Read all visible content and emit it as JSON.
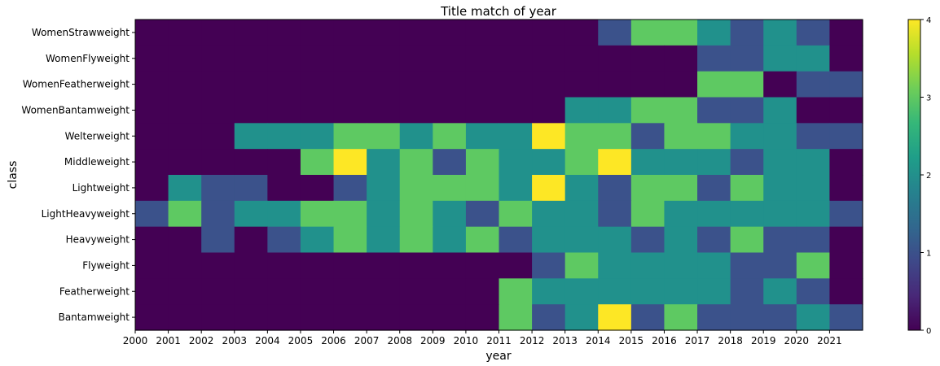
{
  "chart_data": {
    "type": "heatmap",
    "title": "Title match of year",
    "xlabel": "year",
    "ylabel": "class",
    "x_tick_labels": [
      "2000",
      "2001",
      "2002",
      "2003",
      "2004",
      "2005",
      "2006",
      "2007",
      "2008",
      "2009",
      "2010",
      "2011",
      "2012",
      "2013",
      "2014",
      "2015",
      "2016",
      "2017",
      "2018",
      "2019",
      "2020",
      "2021"
    ],
    "x": [
      2000,
      2001,
      2002,
      2003,
      2004,
      2005,
      2006,
      2007,
      2008,
      2009,
      2010,
      2011,
      2012,
      2013,
      2014,
      2015,
      2016,
      2017,
      2018,
      2019,
      2020,
      2021
    ],
    "y": [
      "WomenStrawweight",
      "WomenFlyweight",
      "WomenFeatherweight",
      "WomenBantamweight",
      "Welterweight",
      "Middleweight",
      "Lightweight",
      "LightHeavyweight",
      "Heavyweight",
      "Flyweight",
      "Featherweight",
      "Bantamweight"
    ],
    "values": [
      [
        0,
        0,
        0,
        0,
        0,
        0,
        0,
        0,
        0,
        0,
        0,
        0,
        0,
        0,
        1,
        3,
        3,
        2,
        1,
        2,
        1,
        0
      ],
      [
        0,
        0,
        0,
        0,
        0,
        0,
        0,
        0,
        0,
        0,
        0,
        0,
        0,
        0,
        0,
        0,
        0,
        1,
        1,
        2,
        2,
        0
      ],
      [
        0,
        0,
        0,
        0,
        0,
        0,
        0,
        0,
        0,
        0,
        0,
        0,
        0,
        0,
        0,
        0,
        0,
        3,
        3,
        0,
        1,
        1
      ],
      [
        0,
        0,
        0,
        0,
        0,
        0,
        0,
        0,
        0,
        0,
        0,
        0,
        0,
        2,
        2,
        3,
        3,
        1,
        1,
        2,
        0,
        0
      ],
      [
        0,
        0,
        0,
        2,
        2,
        2,
        3,
        3,
        2,
        3,
        2,
        2,
        4,
        3,
        3,
        1,
        3,
        3,
        2,
        2,
        1,
        1
      ],
      [
        0,
        0,
        0,
        0,
        0,
        3,
        4,
        2,
        3,
        1,
        3,
        2,
        2,
        3,
        4,
        2,
        2,
        2,
        1,
        2,
        2,
        0
      ],
      [
        0,
        2,
        1,
        1,
        0,
        0,
        1,
        2,
        3,
        3,
        3,
        2,
        4,
        2,
        1,
        3,
        3,
        1,
        3,
        2,
        2,
        0
      ],
      [
        1,
        3,
        1,
        2,
        2,
        3,
        3,
        2,
        3,
        2,
        1,
        3,
        2,
        2,
        1,
        3,
        2,
        2,
        2,
        2,
        2,
        1
      ],
      [
        0,
        0,
        1,
        0,
        1,
        2,
        3,
        2,
        3,
        2,
        3,
        1,
        2,
        2,
        2,
        1,
        2,
        1,
        3,
        1,
        1,
        0
      ],
      [
        0,
        0,
        0,
        0,
        0,
        0,
        0,
        0,
        0,
        0,
        0,
        0,
        1,
        3,
        2,
        2,
        2,
        2,
        1,
        1,
        3,
        0
      ],
      [
        0,
        0,
        0,
        0,
        0,
        0,
        0,
        0,
        0,
        0,
        0,
        3,
        2,
        2,
        2,
        2,
        2,
        2,
        1,
        2,
        1,
        0
      ],
      [
        0,
        0,
        0,
        0,
        0,
        0,
        0,
        0,
        0,
        0,
        0,
        3,
        1,
        2,
        4,
        1,
        3,
        1,
        1,
        1,
        2,
        1
      ]
    ],
    "colorbar": {
      "min": 0,
      "max": 4,
      "ticks": [
        0,
        1,
        2,
        3,
        4
      ]
    },
    "colormap": [
      "#440154",
      "#3b528b",
      "#21918c",
      "#5ec962",
      "#fde725"
    ],
    "grid": false
  }
}
